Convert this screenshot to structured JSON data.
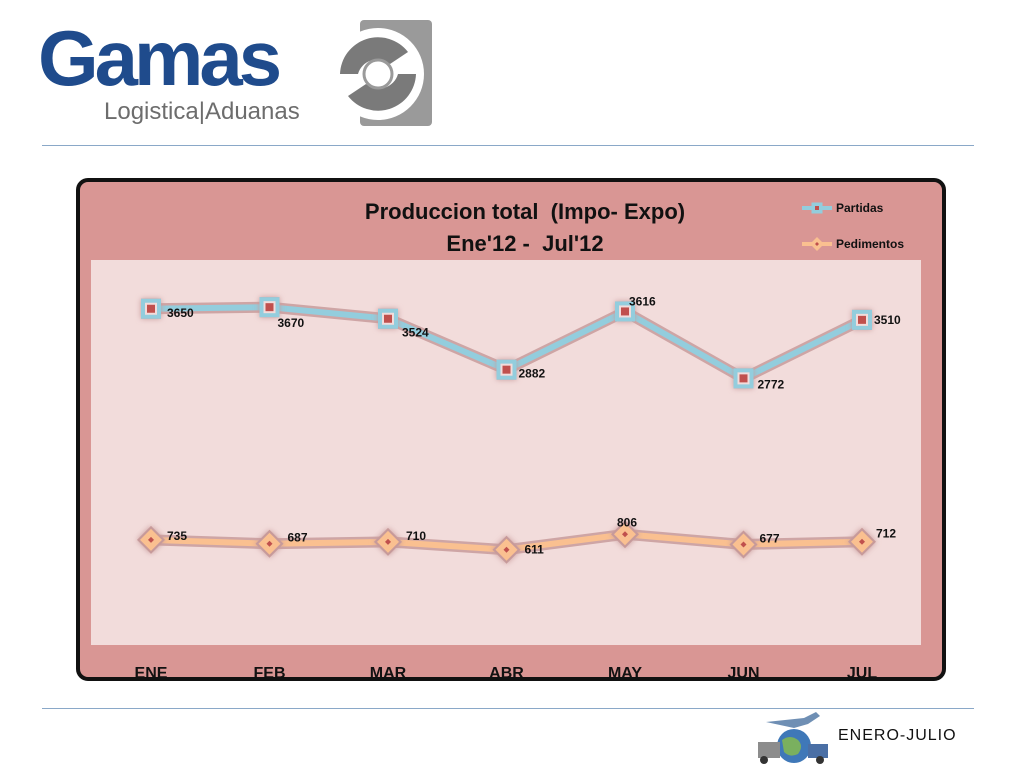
{
  "brand": {
    "name": "Gamas",
    "tagline": "Logistica|Aduanas"
  },
  "footer": {
    "period_label": "ENERO-JULIO"
  },
  "colors": {
    "brand_blue": "#1f4b8c",
    "frame_fill": "#d99694",
    "plot_fill": "#f2dcdb",
    "partidas_line": "#93cddd",
    "pedimentos_line": "#fac090",
    "marker_center": "#c0504d"
  },
  "chart_data": {
    "type": "line",
    "title": "Produccion total  (Impo- Expo)",
    "subtitle": "Ene'12 -  Jul'12",
    "categories": [
      "ENE",
      "FEB",
      "MAR",
      "ABR",
      "MAY",
      "JUN",
      "JUL"
    ],
    "series": [
      {
        "name": "Partidas",
        "values": [
          3650,
          3670,
          3524,
          2882,
          3616,
          2772,
          3510
        ],
        "color": "#93cddd",
        "marker": "square"
      },
      {
        "name": "Pedimentos",
        "values": [
          735,
          687,
          710,
          611,
          806,
          677,
          712
        ],
        "color": "#fac090",
        "marker": "diamond"
      }
    ],
    "grid": false,
    "legend": "top-right",
    "data_labels": true
  }
}
